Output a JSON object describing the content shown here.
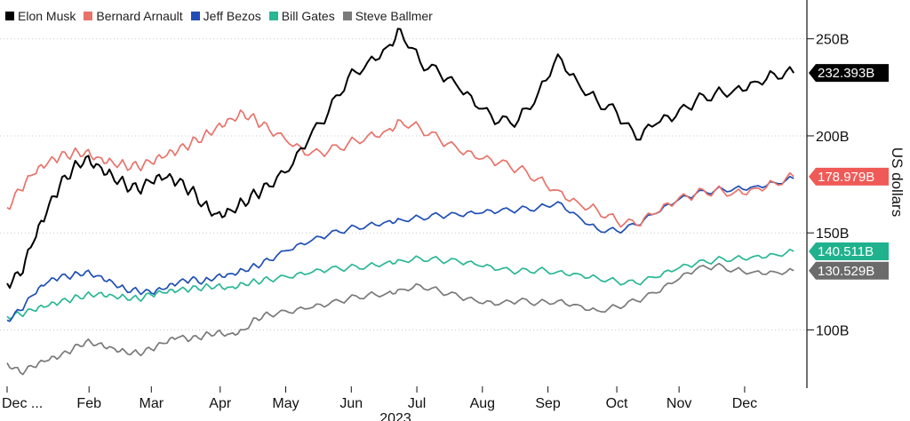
{
  "chart_data": {
    "type": "line",
    "title": "",
    "xlabel": "2023",
    "ylabel": "US dollars",
    "y_unit": "B",
    "ylim": [
      70,
      270
    ],
    "yticks": [
      100,
      150,
      200,
      250
    ],
    "ytick_labels": [
      "100B",
      "150B",
      "200B",
      "250B"
    ],
    "x_range": [
      0,
      12.2
    ],
    "xticks": [
      0,
      1.25,
      2.2,
      3.25,
      4.25,
      5.25,
      6.25,
      7.25,
      8.25,
      9.3,
      10.25,
      11.25
    ],
    "xtick_labels": [
      "Dec ...",
      "Feb",
      "Mar",
      "Apr",
      "May",
      "Jun",
      "Jul",
      "Aug",
      "Sep",
      "Oct",
      "Nov",
      "Dec"
    ],
    "grid": "horizontal dotted",
    "legend_position": "top-left",
    "series": [
      {
        "name": "Steve Ballmer",
        "color": "#7a7a7a",
        "last_label": "130.529B",
        "label_bg": "#6b6b6b",
        "x": [
          0,
          0.2,
          0.4,
          0.6,
          0.8,
          1.0,
          1.2,
          1.4,
          1.6,
          1.8,
          2.0,
          2.2,
          2.4,
          2.6,
          2.8,
          3.0,
          3.2,
          3.4,
          3.6,
          3.8,
          4.0,
          4.3,
          4.6,
          4.9,
          5.2,
          5.5,
          5.8,
          6.0,
          6.3,
          6.6,
          6.9,
          7.2,
          7.5,
          7.8,
          8.1,
          8.4,
          8.7,
          9.0,
          9.3,
          9.6,
          9.9,
          10.2,
          10.5,
          10.8,
          11.1,
          11.4,
          11.7,
          12.0
        ],
        "values": [
          83,
          78,
          81,
          84,
          86,
          90,
          94,
          93,
          91,
          89,
          88,
          90,
          93,
          96,
          95,
          97,
          99,
          98,
          100,
          106,
          108,
          109,
          111,
          113,
          116,
          118,
          119,
          121,
          123,
          120,
          117,
          114,
          113,
          115,
          114,
          115,
          113,
          110,
          112,
          115,
          119,
          125,
          131,
          133,
          131,
          130,
          130,
          130.5
        ]
      },
      {
        "name": "Bill Gates",
        "color": "#2ab795",
        "last_label": "140.511B",
        "label_bg": "#1fb28d",
        "x": [
          0,
          0.2,
          0.4,
          0.6,
          0.8,
          1.0,
          1.2,
          1.4,
          1.6,
          1.8,
          2.0,
          2.2,
          2.4,
          2.6,
          2.8,
          3.0,
          3.2,
          3.4,
          3.6,
          3.8,
          4.0,
          4.3,
          4.6,
          4.9,
          5.2,
          5.5,
          5.8,
          6.0,
          6.3,
          6.6,
          6.9,
          7.2,
          7.5,
          7.8,
          8.1,
          8.4,
          8.7,
          9.0,
          9.3,
          9.6,
          9.9,
          10.2,
          10.5,
          10.8,
          11.1,
          11.4,
          11.7,
          12.0
        ],
        "values": [
          107,
          108,
          110,
          112,
          114,
          116,
          118,
          119,
          118,
          117,
          116,
          118,
          119,
          120,
          121,
          122,
          123,
          122,
          124,
          125,
          126,
          127,
          129,
          131,
          132,
          133,
          135,
          136,
          137,
          136,
          135,
          133,
          131,
          130,
          131,
          130,
          129,
          127,
          125,
          124,
          127,
          131,
          134,
          136,
          137,
          138,
          139,
          140.5
        ]
      },
      {
        "name": "Jeff Bezos",
        "color": "#1f4fb5",
        "last_label": "",
        "label_bg": "#1f4fb5",
        "x": [
          0,
          0.2,
          0.4,
          0.6,
          0.8,
          1.0,
          1.2,
          1.4,
          1.6,
          1.8,
          2.0,
          2.2,
          2.4,
          2.6,
          2.8,
          3.0,
          3.2,
          3.4,
          3.6,
          3.8,
          4.0,
          4.3,
          4.6,
          4.9,
          5.2,
          5.5,
          5.8,
          6.0,
          6.3,
          6.6,
          6.9,
          7.2,
          7.5,
          7.8,
          8.1,
          8.4,
          8.7,
          9.0,
          9.3,
          9.6,
          9.9,
          10.2,
          10.5,
          10.8,
          11.1,
          11.4,
          11.7,
          12.0
        ],
        "values": [
          105,
          110,
          118,
          124,
          127,
          128,
          130,
          128,
          125,
          121,
          120,
          119,
          121,
          124,
          126,
          125,
          128,
          129,
          131,
          133,
          136,
          141,
          145,
          149,
          152,
          154,
          156,
          157,
          158,
          159,
          159,
          160,
          161,
          162,
          163,
          166,
          159,
          152,
          151,
          154,
          160,
          166,
          170,
          172,
          173,
          174,
          176,
          178
        ]
      },
      {
        "name": "Bernard Arnault",
        "color": "#e8736a",
        "last_label": "178.979B",
        "label_bg": "#ef5a57",
        "x": [
          0,
          0.2,
          0.4,
          0.6,
          0.8,
          1.0,
          1.2,
          1.4,
          1.6,
          1.8,
          2.0,
          2.2,
          2.4,
          2.6,
          2.8,
          3.0,
          3.2,
          3.4,
          3.6,
          3.8,
          4.0,
          4.3,
          4.6,
          4.9,
          5.2,
          5.5,
          5.8,
          6.0,
          6.3,
          6.6,
          6.9,
          7.2,
          7.5,
          7.8,
          8.1,
          8.4,
          8.7,
          9.0,
          9.3,
          9.6,
          9.9,
          10.2,
          10.5,
          10.8,
          11.1,
          11.4,
          11.7,
          12.0
        ],
        "values": [
          163,
          172,
          180,
          185,
          189,
          191,
          192,
          189,
          187,
          185,
          184,
          186,
          189,
          192,
          196,
          200,
          205,
          209,
          212,
          208,
          203,
          196,
          190,
          192,
          196,
          200,
          203,
          208,
          204,
          198,
          192,
          188,
          186,
          183,
          178,
          172,
          166,
          162,
          156,
          154,
          160,
          166,
          170,
          172,
          171,
          173,
          176,
          179
        ]
      },
      {
        "name": "Elon Musk",
        "color": "#000000",
        "last_label": "232.393B",
        "label_bg": "#000000",
        "x": [
          0,
          0.2,
          0.4,
          0.6,
          0.8,
          1.0,
          1.2,
          1.4,
          1.6,
          1.8,
          2.0,
          2.2,
          2.4,
          2.6,
          2.8,
          3.0,
          3.2,
          3.4,
          3.6,
          3.8,
          4.0,
          4.3,
          4.6,
          4.9,
          5.2,
          5.5,
          5.8,
          6.0,
          6.3,
          6.6,
          6.9,
          7.2,
          7.5,
          7.8,
          8.1,
          8.4,
          8.7,
          9.0,
          9.3,
          9.6,
          9.9,
          10.2,
          10.5,
          10.8,
          11.1,
          11.4,
          11.7,
          12.0
        ],
        "values": [
          124,
          128,
          145,
          160,
          174,
          183,
          189,
          185,
          180,
          175,
          172,
          176,
          178,
          176,
          172,
          165,
          160,
          162,
          166,
          170,
          174,
          182,
          198,
          212,
          230,
          238,
          246,
          255,
          238,
          232,
          224,
          214,
          207,
          208,
          222,
          242,
          228,
          218,
          212,
          198,
          206,
          210,
          218,
          222,
          224,
          228,
          232,
          232.4
        ]
      }
    ]
  }
}
